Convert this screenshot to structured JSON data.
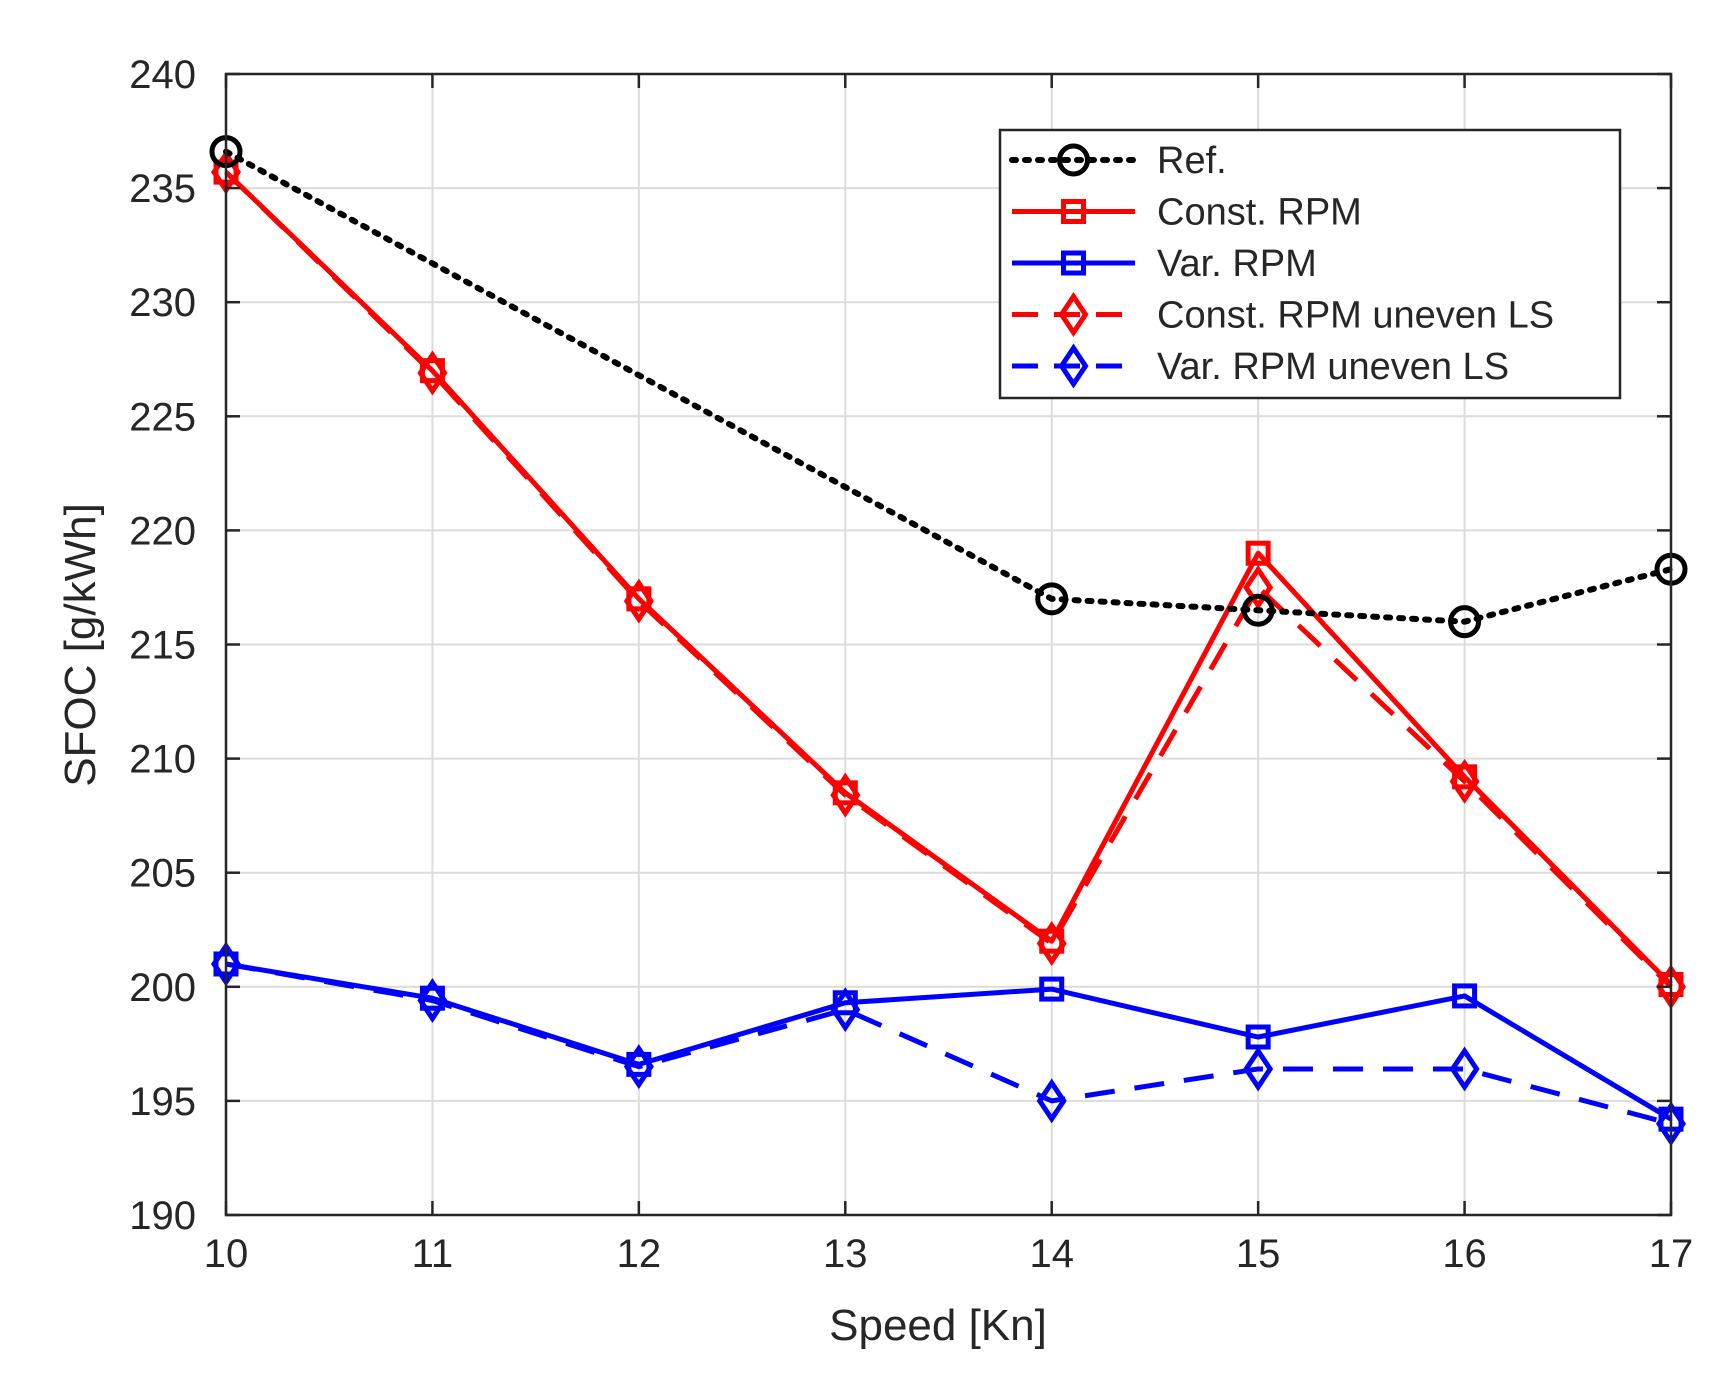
{
  "chart_data": {
    "type": "line",
    "title": "",
    "xlabel": "Speed [Kn]",
    "ylabel": "SFOC [g/kWh]",
    "xlim": [
      10,
      17
    ],
    "ylim": [
      190,
      240
    ],
    "xticks": [
      10,
      11,
      12,
      13,
      14,
      15,
      16,
      17
    ],
    "yticks": [
      190,
      195,
      200,
      205,
      210,
      215,
      220,
      225,
      230,
      235,
      240
    ],
    "grid": true,
    "legend_position": "top-right",
    "x": [
      10,
      11,
      12,
      13,
      14,
      15,
      16,
      17
    ],
    "series": [
      {
        "name": "Ref.",
        "color": "#000000",
        "dash": "dotted",
        "marker": "circle",
        "x": [
          10,
          14,
          15,
          16,
          17
        ],
        "values": [
          236.6,
          217.0,
          216.5,
          216.0,
          218.3
        ]
      },
      {
        "name": "Const. RPM",
        "color": "#ff0000",
        "dash": "solid",
        "marker": "square",
        "x": [
          10,
          11,
          12,
          13,
          14,
          15,
          16,
          17
        ],
        "values": [
          235.7,
          227.0,
          217.0,
          208.5,
          202.0,
          219.0,
          209.2,
          200.1
        ]
      },
      {
        "name": "Var. RPM",
        "color": "#0000ff",
        "dash": "solid",
        "marker": "square",
        "x": [
          10,
          11,
          12,
          13,
          14,
          15,
          16,
          17
        ],
        "values": [
          201.0,
          199.5,
          196.6,
          199.3,
          199.9,
          197.8,
          199.6,
          194.2
        ]
      },
      {
        "name": "Const. RPM uneven LS",
        "color": "#ff0000",
        "dash": "dashed",
        "marker": "diamond",
        "x": [
          10,
          11,
          12,
          13,
          14,
          15,
          16,
          17
        ],
        "values": [
          235.7,
          226.9,
          216.9,
          208.4,
          201.9,
          217.5,
          209.0,
          200.0
        ]
      },
      {
        "name": "Var. RPM uneven LS",
        "color": "#0000ff",
        "dash": "dashed",
        "marker": "diamond",
        "x": [
          10,
          11,
          12,
          13,
          14,
          15,
          16,
          17
        ],
        "values": [
          201.0,
          199.4,
          196.5,
          199.0,
          195.0,
          196.4,
          196.4,
          194.0
        ]
      }
    ]
  }
}
